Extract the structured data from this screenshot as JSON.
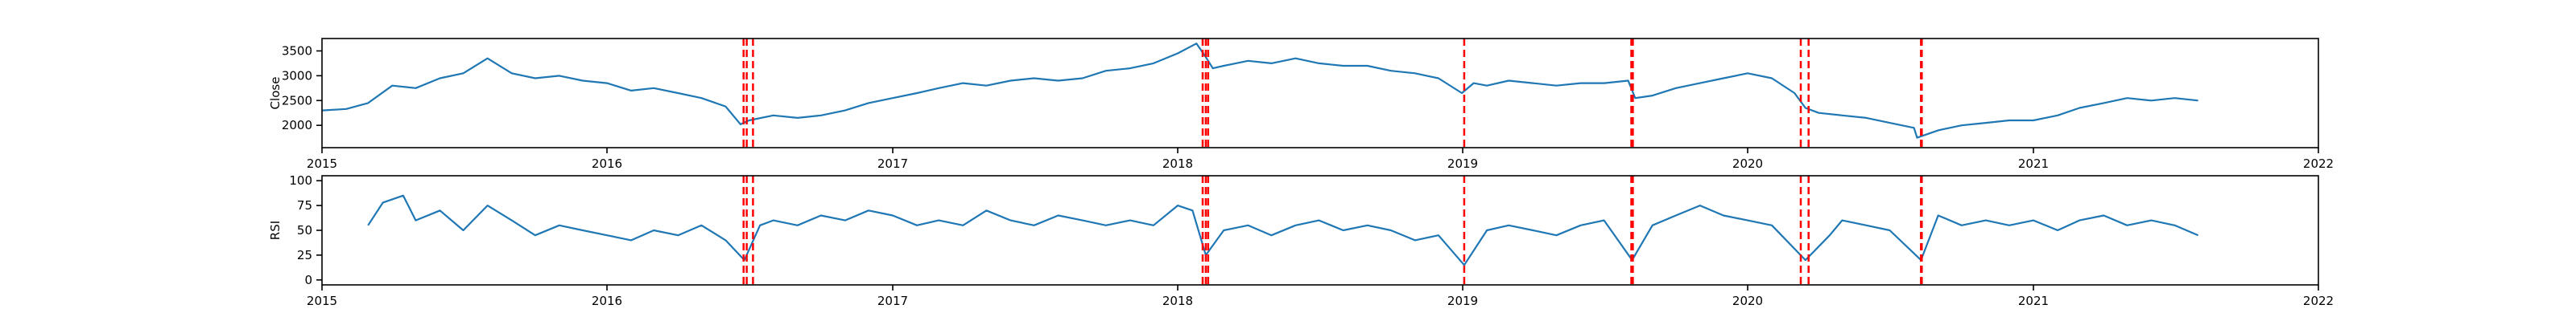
{
  "chart_data": [
    {
      "type": "line",
      "title": "",
      "xlabel": "",
      "ylabel": "Close",
      "xlim": [
        "2015-01-01",
        "2022-01-01"
      ],
      "ylim": [
        1550,
        3750
      ],
      "x_ticks": [
        "2015",
        "2016",
        "2017",
        "2018",
        "2019",
        "2020",
        "2021",
        "2022"
      ],
      "y_ticks": [
        2000,
        2500,
        3000,
        3500
      ],
      "grid": false,
      "line_color": "#1f77b4",
      "series": [
        {
          "x": [
            "2015-01-01",
            "2015-02-01",
            "2015-03-01",
            "2015-04-01",
            "2015-05-01",
            "2015-06-01",
            "2015-07-01",
            "2015-08-01",
            "2015-09-01",
            "2015-10-01",
            "2015-11-01",
            "2015-12-01",
            "2016-01-01",
            "2016-02-01",
            "2016-03-01",
            "2016-04-01",
            "2016-05-01",
            "2016-06-01",
            "2016-06-20",
            "2016-07-01",
            "2016-08-01",
            "2016-09-01",
            "2016-10-01",
            "2016-11-01",
            "2016-12-01",
            "2017-01-01",
            "2017-02-01",
            "2017-03-01",
            "2017-04-01",
            "2017-05-01",
            "2017-06-01",
            "2017-07-01",
            "2017-08-01",
            "2017-09-01",
            "2017-10-01",
            "2017-11-01",
            "2017-12-01",
            "2018-01-01",
            "2018-01-25",
            "2018-02-05",
            "2018-02-15",
            "2018-03-01",
            "2018-04-01",
            "2018-05-01",
            "2018-06-01",
            "2018-07-01",
            "2018-08-01",
            "2018-09-01",
            "2018-10-01",
            "2018-11-01",
            "2018-12-01",
            "2018-12-31",
            "2019-01-15",
            "2019-02-01",
            "2019-03-01",
            "2019-04-01",
            "2019-05-01",
            "2019-06-01",
            "2019-07-01",
            "2019-08-01",
            "2019-08-10",
            "2019-09-01",
            "2019-10-01",
            "2019-11-01",
            "2019-12-01",
            "2020-01-01",
            "2020-02-01",
            "2020-03-01",
            "2020-03-15",
            "2020-04-01",
            "2020-05-01",
            "2020-06-01",
            "2020-07-01",
            "2020-08-01",
            "2020-08-05",
            "2020-09-01",
            "2020-10-01",
            "2020-11-01",
            "2020-12-01",
            "2021-01-01",
            "2021-02-01",
            "2021-03-01",
            "2021-04-01",
            "2021-05-01",
            "2021-06-01",
            "2021-07-01",
            "2021-07-31"
          ],
          "y": [
            2300,
            2330,
            2450,
            2800,
            2750,
            2950,
            3050,
            3350,
            3050,
            2950,
            3000,
            2900,
            2850,
            2700,
            2750,
            2650,
            2550,
            2380,
            2020,
            2100,
            2200,
            2150,
            2200,
            2300,
            2450,
            2550,
            2650,
            2750,
            2850,
            2800,
            2900,
            2950,
            2900,
            2950,
            3100,
            3150,
            3250,
            3450,
            3650,
            3400,
            3150,
            3200,
            3300,
            3250,
            3350,
            3250,
            3200,
            3200,
            3100,
            3050,
            2950,
            2650,
            2850,
            2800,
            2900,
            2850,
            2800,
            2850,
            2850,
            2900,
            2550,
            2600,
            2750,
            2850,
            2950,
            3050,
            2950,
            2650,
            2350,
            2250,
            2200,
            2150,
            2050,
            1950,
            1750,
            1900,
            2000,
            2050,
            2100,
            2100,
            2200,
            2350,
            2450,
            2550,
            2500,
            2550,
            2500
          ]
        }
      ],
      "vlines": [
        "2016-06-24",
        "2016-06-28",
        "2016-07-06",
        "2018-02-02",
        "2018-02-06",
        "2018-02-09",
        "2019-01-03",
        "2019-08-05",
        "2019-08-06",
        "2019-08-07",
        "2020-03-09",
        "2020-03-19",
        "2020-08-10",
        "2020-08-11"
      ],
      "vline_color": "#ff0000"
    },
    {
      "type": "line",
      "title": "",
      "xlabel": "",
      "ylabel": "RSI",
      "xlim": [
        "2015-01-01",
        "2022-01-01"
      ],
      "ylim": [
        -5,
        105
      ],
      "x_ticks": [
        "2015",
        "2016",
        "2017",
        "2018",
        "2019",
        "2020",
        "2021",
        "2022"
      ],
      "y_ticks": [
        0,
        25,
        50,
        75,
        100
      ],
      "grid": false,
      "line_color": "#1f77b4",
      "series": [
        {
          "x": [
            "2015-03-01",
            "2015-03-20",
            "2015-04-15",
            "2015-05-01",
            "2015-06-01",
            "2015-07-01",
            "2015-08-01",
            "2015-09-01",
            "2015-10-01",
            "2015-11-01",
            "2015-12-01",
            "2016-01-01",
            "2016-02-01",
            "2016-03-01",
            "2016-04-01",
            "2016-05-01",
            "2016-06-01",
            "2016-06-25",
            "2016-07-15",
            "2016-08-01",
            "2016-09-01",
            "2016-10-01",
            "2016-11-01",
            "2016-12-01",
            "2017-01-01",
            "2017-02-01",
            "2017-03-01",
            "2017-04-01",
            "2017-05-01",
            "2017-06-01",
            "2017-07-01",
            "2017-08-01",
            "2017-09-01",
            "2017-10-01",
            "2017-11-01",
            "2017-12-01",
            "2018-01-01",
            "2018-01-20",
            "2018-02-06",
            "2018-03-01",
            "2018-04-01",
            "2018-05-01",
            "2018-06-01",
            "2018-07-01",
            "2018-08-01",
            "2018-09-01",
            "2018-10-01",
            "2018-11-01",
            "2018-12-01",
            "2019-01-03",
            "2019-02-01",
            "2019-03-01",
            "2019-04-01",
            "2019-05-01",
            "2019-06-01",
            "2019-07-01",
            "2019-08-06",
            "2019-09-01",
            "2019-10-01",
            "2019-11-01",
            "2019-12-01",
            "2020-01-01",
            "2020-02-01",
            "2020-03-15",
            "2020-04-15",
            "2020-05-01",
            "2020-06-01",
            "2020-07-01",
            "2020-08-10",
            "2020-09-01",
            "2020-10-01",
            "2020-11-01",
            "2020-12-01",
            "2021-01-01",
            "2021-02-01",
            "2021-03-01",
            "2021-04-01",
            "2021-05-01",
            "2021-06-01",
            "2021-07-01",
            "2021-07-31"
          ],
          "y": [
            55,
            78,
            85,
            60,
            70,
            50,
            75,
            60,
            45,
            55,
            50,
            45,
            40,
            50,
            45,
            55,
            40,
            20,
            55,
            60,
            55,
            65,
            60,
            70,
            65,
            55,
            60,
            55,
            70,
            60,
            55,
            65,
            60,
            55,
            60,
            55,
            75,
            70,
            25,
            50,
            55,
            45,
            55,
            60,
            50,
            55,
            50,
            40,
            45,
            15,
            50,
            55,
            50,
            45,
            55,
            60,
            20,
            55,
            65,
            75,
            65,
            60,
            55,
            20,
            45,
            60,
            55,
            50,
            20,
            65,
            55,
            60,
            55,
            60,
            50,
            60,
            65,
            55,
            60,
            55,
            45
          ]
        }
      ],
      "vlines": [
        "2016-06-24",
        "2016-06-28",
        "2016-07-06",
        "2018-02-02",
        "2018-02-06",
        "2018-02-09",
        "2019-01-03",
        "2019-08-05",
        "2019-08-06",
        "2019-08-07",
        "2020-03-09",
        "2020-03-19",
        "2020-08-10",
        "2020-08-11"
      ],
      "vline_color": "#ff0000"
    }
  ]
}
